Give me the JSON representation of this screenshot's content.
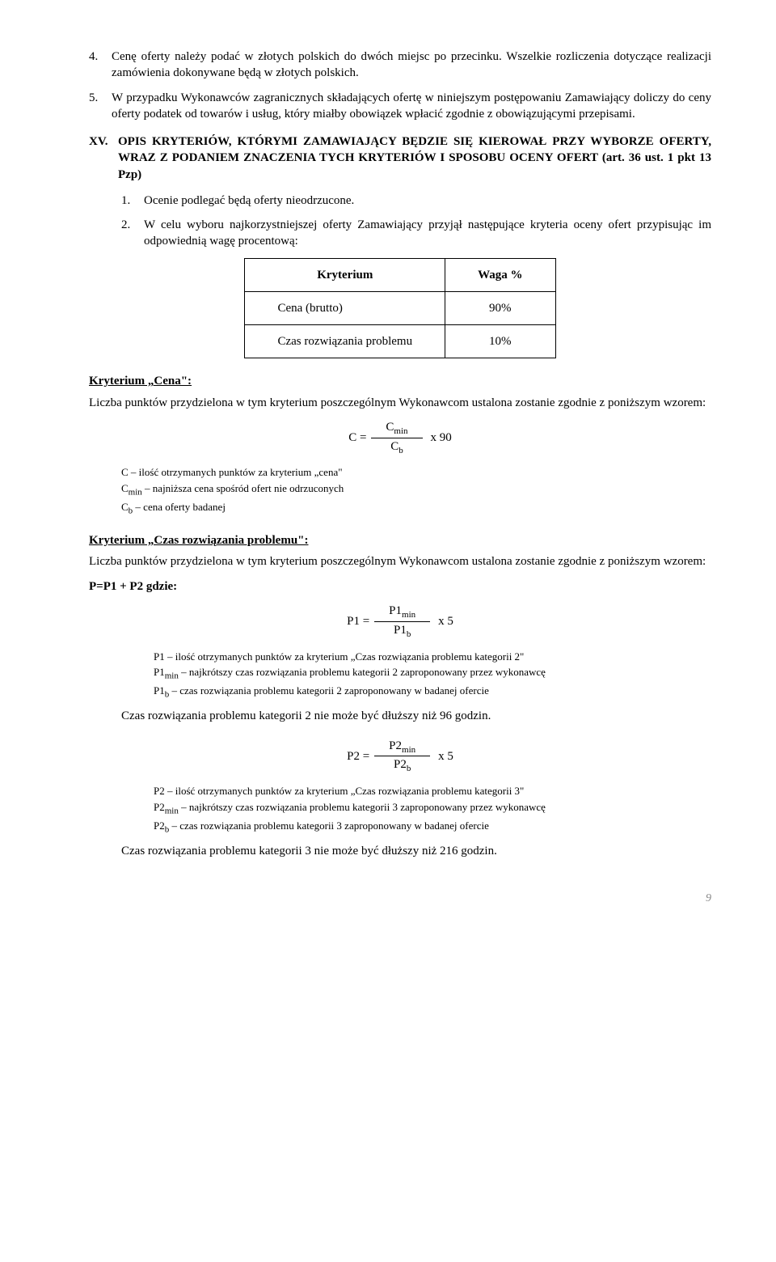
{
  "item4": {
    "num": "4.",
    "text": "Cenę oferty należy podać w złotych polskich do dwóch miejsc po przecinku. Wszelkie rozliczenia dotyczące realizacji zamówienia dokonywane będą w złotych polskich."
  },
  "item5": {
    "num": "5.",
    "text": "W przypadku Wykonawców zagranicznych składających ofertę w niniejszym postępowaniu Zamawiający doliczy do ceny oferty podatek od towarów i usług, który miałby obowiązek wpłacić zgodnie z obowiązującymi przepisami."
  },
  "sectionXV": {
    "roman": "XV.",
    "title": "OPIS KRYTERIÓW, KTÓRYMI ZAMAWIAJĄCY BĘDZIE SIĘ KIEROWAŁ PRZY WYBORZE OFERTY, WRAZ Z PODANIEM ZNACZENIA TYCH KRYTERIÓW I SPOSOBU OCENY OFERT (art. 36 ust. 1 pkt 13 Pzp)",
    "sub1": {
      "num": "1.",
      "text": "Ocenie podlegać będą oferty nieodrzucone."
    },
    "sub2": {
      "num": "2.",
      "text": "W celu wyboru najkorzystniejszej oferty Zamawiający przyjął następujące kryteria oceny ofert przypisując im odpowiednią wagę procentową:"
    }
  },
  "table": {
    "headers": [
      "Kryterium",
      "Waga %"
    ],
    "rows": [
      [
        "Cena (brutto)",
        "90%"
      ],
      [
        "Czas rozwiązania problemu",
        "10%"
      ]
    ]
  },
  "cena": {
    "title": "Kryterium „Cena\":",
    "intro": "Liczba punktów przydzielona w tym kryterium poszczególnym Wykonawcom ustalona zostanie zgodnie z poniższym wzorem:",
    "formula": {
      "lhs": "C =",
      "top": "Cmin",
      "bot": "Cb",
      "mult": "x 90",
      "topSub": "min",
      "botSub": "b",
      "topBase": "C",
      "botBase": "C"
    },
    "legend": [
      "C – ilość otrzymanych punktów za kryterium „cena\"",
      "Cmin – najniższa cena spośród ofert nie odrzuconych",
      "Cb – cena oferty badanej"
    ],
    "legendHtml": [
      "C – ilość otrzymanych punktów za kryterium „cena\"",
      "C<sub>min</sub> – najniższa cena spośród ofert nie odrzuconych",
      "C<sub>b</sub> – cena oferty badanej"
    ]
  },
  "czas": {
    "title": "Kryterium „Czas rozwiązania problemu\":",
    "intro": "Liczba punktów przydzielona w tym kryterium poszczególnym Wykonawcom ustalona zostanie zgodnie z poniższym wzorem:",
    "pSum": "P=P1 + P2 gdzie:",
    "f1": {
      "lhs": "P1 =",
      "topBase": "P1",
      "topSub": "min",
      "botBase": "P1",
      "botSub": "b",
      "mult": "x 5"
    },
    "legend1": [
      "P1 – ilość otrzymanych punktów za kryterium „Czas rozwiązania problemu kategorii 2\"",
      "P1min – najkrótszy czas rozwiązania problemu kategorii 2 zaproponowany przez wykonawcę",
      "P1b – czas rozwiązania problemu kategorii 2 zaproponowany w badanej ofercie"
    ],
    "after1": "Czas rozwiązania problemu kategorii 2 nie może być dłuższy niż 96 godzin.",
    "f2": {
      "lhs": "P2 =",
      "topBase": "P2",
      "topSub": "min",
      "botBase": "P2",
      "botSub": "b",
      "mult": "x 5"
    },
    "legend2": [
      "P2 – ilość otrzymanych punktów za kryterium „Czas rozwiązania problemu kategorii 3\"",
      "P2min – najkrótszy czas rozwiązania problemu kategorii 3 zaproponowany przez wykonawcę",
      "P2b – czas rozwiązania problemu kategorii 3 zaproponowany w badanej ofercie"
    ],
    "after2": "Czas rozwiązania problemu kategorii 3 nie może być dłuższy niż 216 godzin."
  },
  "pageNumber": "9"
}
